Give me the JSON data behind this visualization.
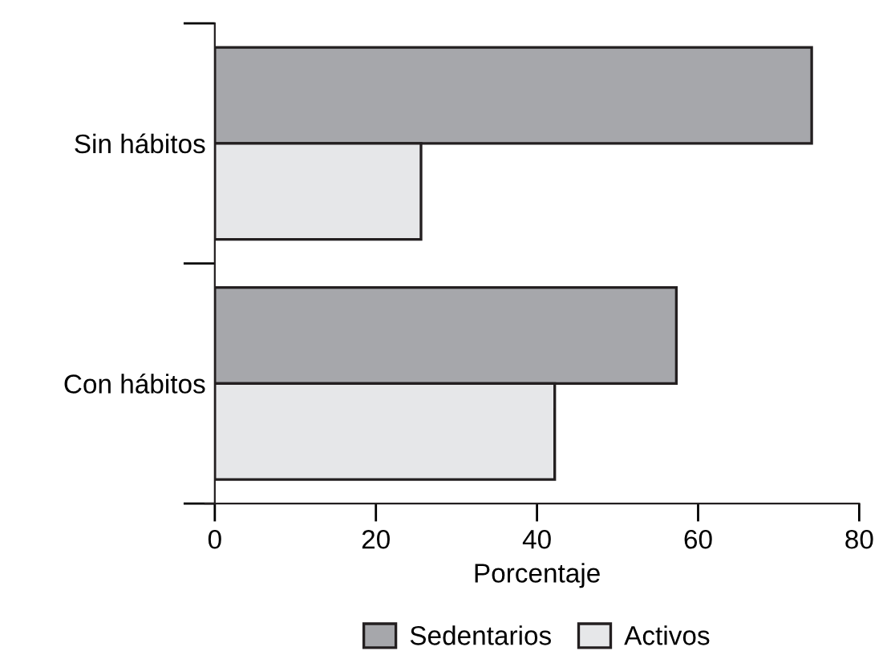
{
  "chart_data": {
    "type": "bar",
    "orientation": "horizontal",
    "xlabel": "Porcentaje",
    "categories": [
      "Sin hábitos",
      "Con hábitos"
    ],
    "series": [
      {
        "name": "Sedentarios",
        "color": "#a6a7ab",
        "values": [
          74.1,
          57.3
        ]
      },
      {
        "name": "Activos",
        "color": "#e6e7e9",
        "values": [
          25.6,
          42.2
        ]
      }
    ],
    "xlim": [
      0,
      80
    ],
    "xticks": [
      0,
      20,
      40,
      60,
      80
    ],
    "legend": "bottom",
    "grid": false
  }
}
